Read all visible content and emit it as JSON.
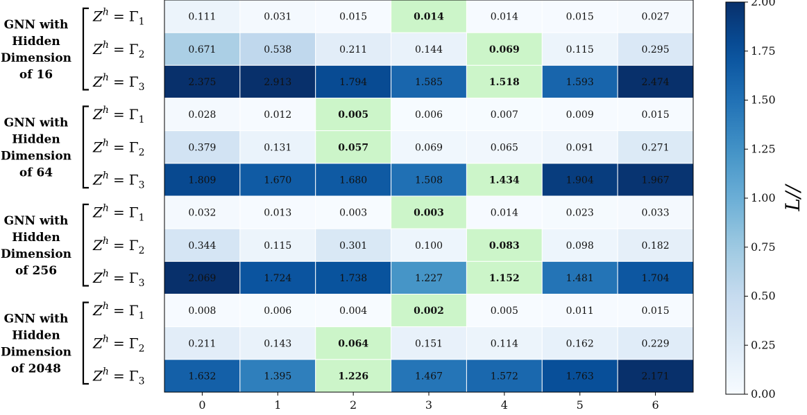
{
  "chart_data": {
    "type": "heatmap",
    "title": "",
    "xlabel": "",
    "x_ticks": [
      "0",
      "1",
      "2",
      "3",
      "4",
      "5",
      "6"
    ],
    "groups": [
      {
        "label_lines": [
          "GNN with",
          "Hidden",
          "Dimension",
          "of 16"
        ],
        "rows": [
          {
            "name": "Γ1",
            "values": [
              0.111,
              0.031,
              0.015,
              0.014,
              0.014,
              0.015,
              0.027
            ],
            "best": 3
          },
          {
            "name": "Γ2",
            "values": [
              0.671,
              0.538,
              0.211,
              0.144,
              0.069,
              0.115,
              0.295
            ],
            "best": 4
          },
          {
            "name": "Γ3",
            "values": [
              2.375,
              2.913,
              1.794,
              1.585,
              1.518,
              1.593,
              2.474
            ],
            "best": 4
          }
        ]
      },
      {
        "label_lines": [
          "GNN with",
          "Hidden",
          "Dimension",
          "of 64"
        ],
        "rows": [
          {
            "name": "Γ1",
            "values": [
              0.028,
              0.012,
              0.005,
              0.006,
              0.007,
              0.009,
              0.015
            ],
            "best": 2
          },
          {
            "name": "Γ2",
            "values": [
              0.379,
              0.131,
              0.057,
              0.069,
              0.065,
              0.091,
              0.271
            ],
            "best": 2
          },
          {
            "name": "Γ3",
            "values": [
              1.809,
              1.67,
              1.68,
              1.508,
              1.434,
              1.904,
              1.967
            ],
            "best": 4
          }
        ]
      },
      {
        "label_lines": [
          "GNN with",
          "Hidden",
          "Dimension",
          "of 256"
        ],
        "rows": [
          {
            "name": "Γ1",
            "values": [
              0.032,
              0.013,
              0.003,
              0.003,
              0.014,
              0.023,
              0.033
            ],
            "best": 3
          },
          {
            "name": "Γ2",
            "values": [
              0.344,
              0.115,
              0.301,
              0.1,
              0.083,
              0.098,
              0.182
            ],
            "best": 4
          },
          {
            "name": "Γ3",
            "values": [
              2.069,
              1.724,
              1.738,
              1.227,
              1.152,
              1.481,
              1.704
            ],
            "best": 4
          }
        ]
      },
      {
        "label_lines": [
          "GNN with",
          "Hidden",
          "Dimension",
          "of 2048"
        ],
        "rows": [
          {
            "name": "Γ1",
            "values": [
              0.008,
              0.006,
              0.004,
              0.002,
              0.005,
              0.011,
              0.015
            ],
            "best": 3
          },
          {
            "name": "Γ2",
            "values": [
              0.211,
              0.143,
              0.064,
              0.151,
              0.114,
              0.162,
              0.229
            ],
            "best": 2
          },
          {
            "name": "Γ3",
            "values": [
              1.632,
              1.395,
              1.226,
              1.467,
              1.572,
              1.763,
              2.171
            ],
            "best": 2
          }
        ]
      }
    ],
    "row_label_prefix": "Z",
    "row_label_superscript": "h",
    "row_label_symbol": "Γ",
    "colorbar": {
      "label": "L//",
      "min": 0.0,
      "max": 2.0,
      "ticks": [
        "0.00",
        "0.25",
        "0.50",
        "0.75",
        "1.00",
        "1.25",
        "1.50",
        "1.75",
        "2.00"
      ],
      "colormap": "Blues"
    },
    "highlight_color": "#ccf5c9",
    "number_format": "3 decimals"
  }
}
